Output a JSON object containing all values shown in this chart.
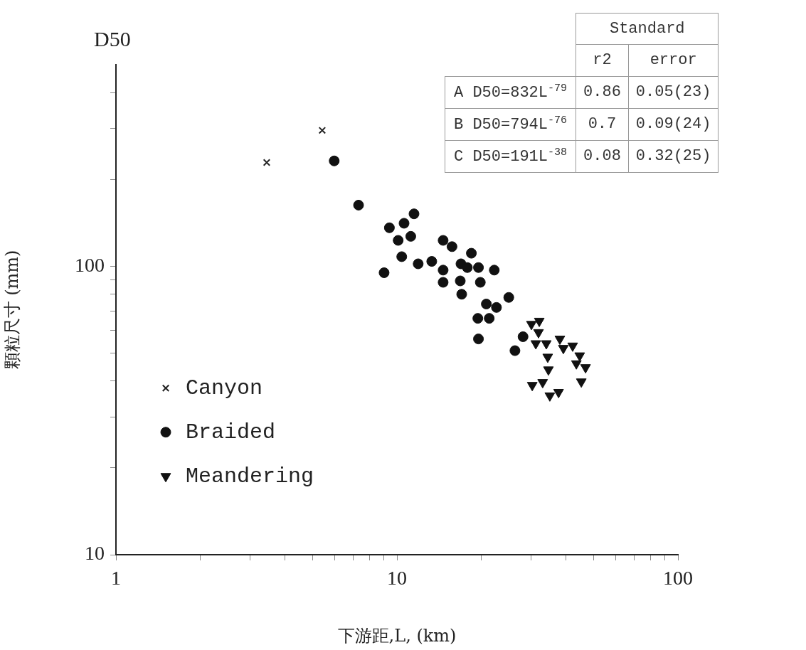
{
  "chart_data": {
    "type": "scatter",
    "title": "D50",
    "xlabel": "下游距,L, (km)",
    "ylabel": "顆粒尺寸 (mm)",
    "log": "xy",
    "legend": "left",
    "xlim": [
      1,
      100
    ],
    "ylim": [
      10,
      500
    ],
    "xticks": [
      1,
      {
        "value": 2,
        "label": null
      },
      {
        "value": 3,
        "label": null
      },
      {
        "value": 4,
        "label": null
      },
      {
        "value": 5,
        "label": null
      },
      {
        "value": 6,
        "label": null
      },
      {
        "value": 7,
        "label": null
      },
      {
        "value": 8,
        "label": null
      },
      {
        "value": 9,
        "label": null
      },
      10,
      {
        "value": 20,
        "label": null
      },
      {
        "value": 30,
        "label": null
      },
      {
        "value": 40,
        "label": null
      },
      {
        "value": 50,
        "label": null
      },
      {
        "value": 60,
        "label": null
      },
      {
        "value": 70,
        "label": null
      },
      {
        "value": 80,
        "label": null
      },
      {
        "value": 90,
        "label": null
      },
      100
    ],
    "yticks": [
      10,
      {
        "value": 20,
        "label": null
      },
      {
        "value": 30,
        "label": null
      },
      {
        "value": 40,
        "label": null
      },
      {
        "value": 50,
        "label": null
      },
      {
        "value": 60,
        "label": null
      },
      {
        "value": 70,
        "label": null
      },
      {
        "value": 80,
        "label": null
      },
      {
        "value": 90,
        "label": null
      },
      100,
      {
        "value": 200,
        "label": null
      },
      {
        "value": 300,
        "label": null
      },
      {
        "value": 400,
        "label": null
      }
    ],
    "series": [
      {
        "name": "Canyon",
        "color": "#222222",
        "marker": "cross",
        "x": [
          3.44,
          5.42
        ],
        "values": [
          229,
          296
        ]
      },
      {
        "name": "Braided",
        "color": "#111111",
        "marker": "circle",
        "x": [
          5.98,
          7.3,
          11.5,
          10.6,
          9.4,
          11.2,
          10.1,
          14.6,
          15.7,
          10.4,
          9.0,
          11.9,
          13.3,
          14.6,
          14.6,
          18.4,
          16.9,
          17.8,
          19.5,
          22.2,
          16.8,
          19.8,
          17.0,
          25.0,
          20.8,
          22.6,
          19.4,
          21.3,
          19.5,
          28.1,
          26.3
        ],
        "values": [
          232,
          163,
          152,
          141,
          136,
          127,
          123,
          123,
          117,
          108,
          95,
          102,
          104,
          97,
          88,
          111,
          102,
          99,
          99,
          97,
          89,
          88,
          80,
          78,
          74,
          72,
          66,
          66,
          56,
          57,
          51
        ]
      },
      {
        "name": "Meandering",
        "color": "#111111",
        "marker": "triangle",
        "x": [
          32.1,
          30.1,
          31.9,
          31.2,
          34.0,
          38.0,
          39.1,
          42.2,
          44.7,
          34.4,
          34.6,
          43.5,
          46.9,
          45.3,
          30.3,
          33.0,
          35.0,
          37.6
        ],
        "values": [
          64.6,
          63,
          59,
          54,
          54,
          56,
          52,
          53,
          49,
          48.5,
          43.8,
          46,
          44.6,
          39.8,
          38.7,
          39.6,
          35.6,
          36.6
        ]
      }
    ],
    "annotations": [
      "Standard",
      "r2",
      "error",
      "A D50=832L$^{-79}$",
      "0.86",
      "0.05(23)",
      "B D50=794L$^{-76}$",
      "0.7",
      "0.09(24)",
      "C D50=191L$^{-38}$",
      "0.08",
      "0.32(25)"
    ]
  }
}
